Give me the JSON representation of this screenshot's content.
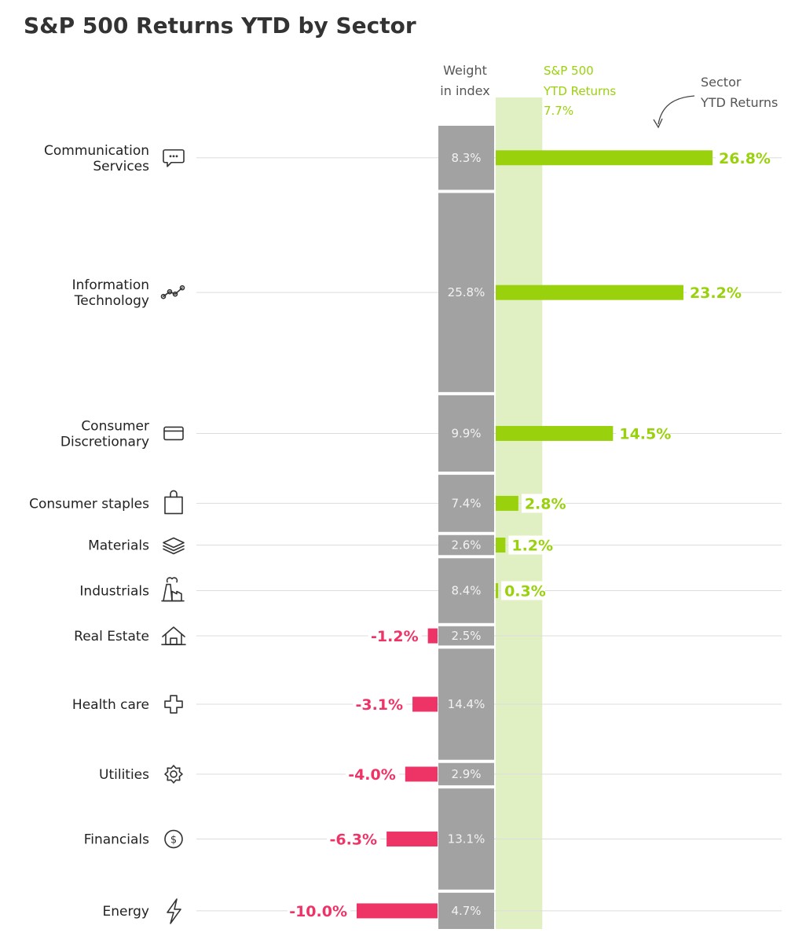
{
  "title": "S&P 500 Returns YTD by Sector",
  "headers": {
    "weight_line1": "Weight",
    "weight_line2": "in index",
    "sp500_line1": "S&P 500",
    "sp500_line2": "YTD Returns",
    "sp500_value": "7.7%",
    "sector_line1": "Sector",
    "sector_line2": "YTD Returns"
  },
  "colors": {
    "positive": "#99d20c",
    "negative": "#ee3466",
    "weight_box": "#a2a2a2",
    "sp500_band": "#e1f0c2",
    "gridline": "#dddddd"
  },
  "chart_data": {
    "type": "bar",
    "title": "S&P 500 Returns YTD by Sector",
    "benchmark": {
      "name": "S&P 500 YTD Returns",
      "value": 7.7,
      "label": "7.7%"
    },
    "xlabel": "Sector YTD Returns",
    "ylabel": "",
    "series": [
      {
        "name": "Sector YTD Returns",
        "values": [
          26.8,
          23.2,
          14.5,
          2.8,
          1.2,
          0.3,
          -1.2,
          -3.1,
          -4.0,
          -6.3,
          -10.0
        ]
      },
      {
        "name": "Weight in index",
        "values": [
          8.3,
          25.8,
          9.9,
          7.4,
          2.6,
          8.4,
          2.5,
          14.4,
          2.9,
          13.1,
          4.7
        ]
      }
    ],
    "sectors": [
      {
        "name_lines": [
          "Communication",
          "Services"
        ],
        "icon": "chat-bubble-icon",
        "weight": 8.3,
        "weight_label": "8.3%",
        "return": 26.8,
        "return_label": "26.8%"
      },
      {
        "name_lines": [
          "Information",
          "Technology"
        ],
        "icon": "line-graph-icon",
        "weight": 25.8,
        "weight_label": "25.8%",
        "return": 23.2,
        "return_label": "23.2%"
      },
      {
        "name_lines": [
          "Consumer",
          "Discretionary"
        ],
        "icon": "credit-card-icon",
        "weight": 9.9,
        "weight_label": "9.9%",
        "return": 14.5,
        "return_label": "14.5%"
      },
      {
        "name_lines": [
          "Consumer staples"
        ],
        "icon": "shopping-bag-icon",
        "weight": 7.4,
        "weight_label": "7.4%",
        "return": 2.8,
        "return_label": "2.8%"
      },
      {
        "name_lines": [
          "Materials"
        ],
        "icon": "layers-icon",
        "weight": 2.6,
        "weight_label": "2.6%",
        "return": 1.2,
        "return_label": "1.2%"
      },
      {
        "name_lines": [
          "Industrials"
        ],
        "icon": "factory-icon",
        "weight": 8.4,
        "weight_label": "8.4%",
        "return": 0.3,
        "return_label": "0.3%"
      },
      {
        "name_lines": [
          "Real Estate"
        ],
        "icon": "house-icon",
        "weight": 2.5,
        "weight_label": "2.5%",
        "return": -1.2,
        "return_label": "-1.2%"
      },
      {
        "name_lines": [
          "Health care"
        ],
        "icon": "medical-cross-icon",
        "weight": 14.4,
        "weight_label": "14.4%",
        "return": -3.1,
        "return_label": "-3.1%"
      },
      {
        "name_lines": [
          "Utilities"
        ],
        "icon": "gear-icon",
        "weight": 2.9,
        "weight_label": "2.9%",
        "return": -4.0,
        "return_label": "-4.0%"
      },
      {
        "name_lines": [
          "Financials"
        ],
        "icon": "dollar-coin-icon",
        "weight": 13.1,
        "weight_label": "13.1%",
        "return": -6.3,
        "return_label": "-6.3%"
      },
      {
        "name_lines": [
          "Energy"
        ],
        "icon": "lightning-icon",
        "weight": 4.7,
        "weight_label": "4.7%",
        "return": -10.0,
        "return_label": "-10.0%"
      }
    ]
  }
}
